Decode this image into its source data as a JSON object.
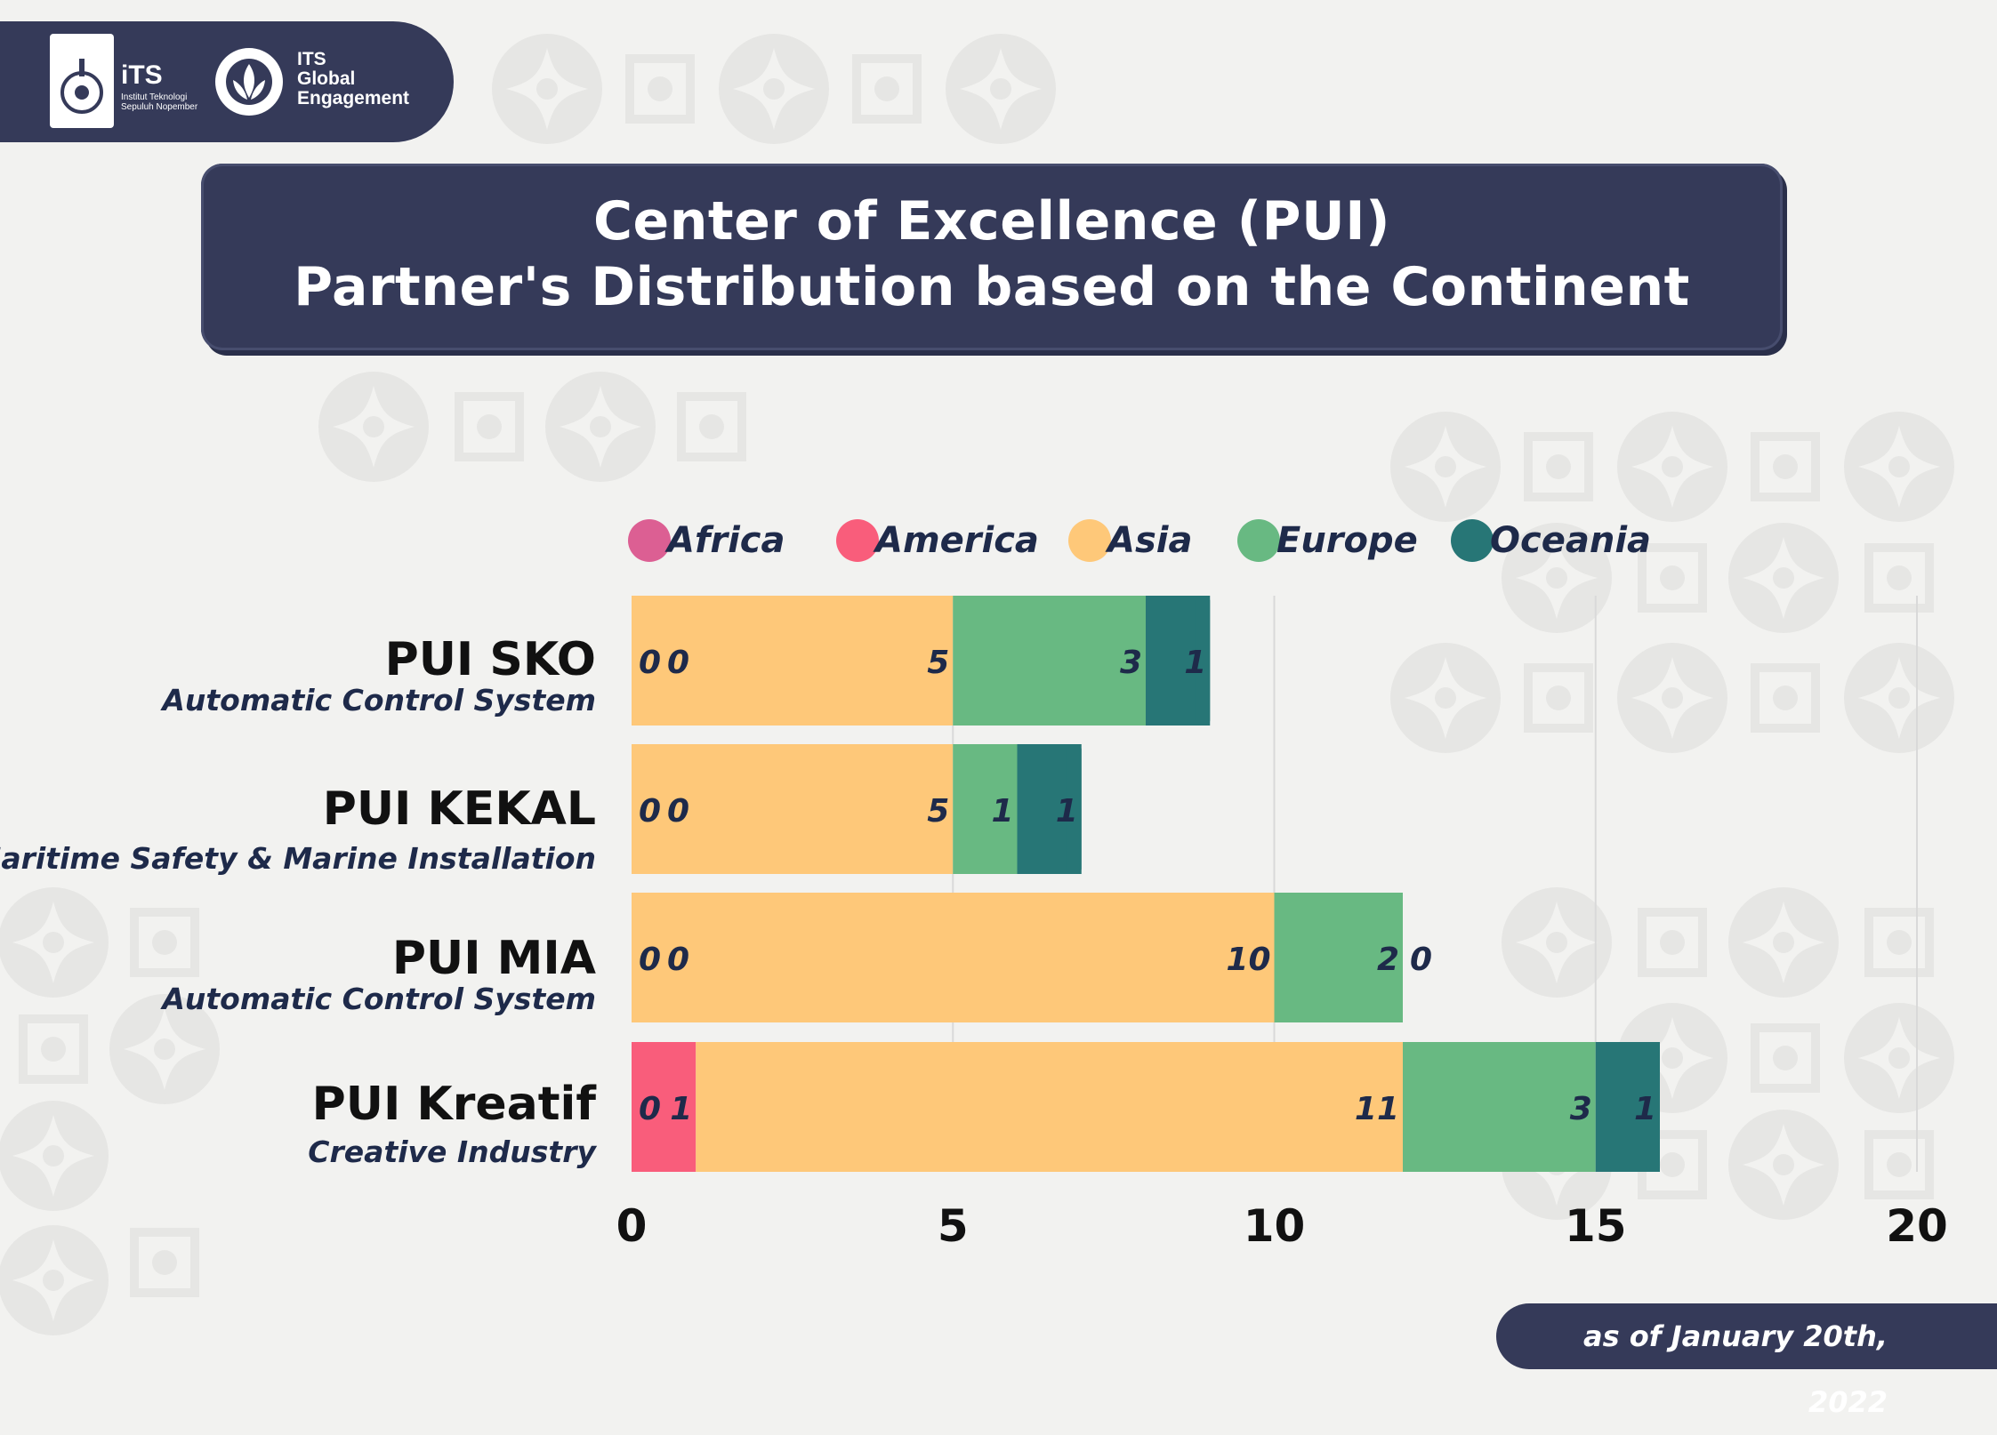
{
  "header": {
    "its_logo": {
      "word": "iTS",
      "subtitle": "Institut Teknologi Sepuluh Nopember"
    },
    "ge_logo": {
      "line1": "ITS",
      "line2": "Global",
      "line3": "Engagement"
    }
  },
  "title": {
    "line1": "Center of Excellence (PUI)",
    "line2": "Partner's Distribution based on the Continent"
  },
  "footer": {
    "date": "as of January 20th, 2022"
  },
  "colors": {
    "navy": "#353a59",
    "Africa": "#dc5f93",
    "America": "#f95d7b",
    "Asia": "#fec879",
    "Europe": "#68b982",
    "Oceania": "#277676"
  },
  "chart_data": {
    "type": "bar",
    "orientation": "horizontal",
    "stacked": true,
    "categories": [
      {
        "name": "PUI SKO",
        "subtitle": "Automatic Control System"
      },
      {
        "name": "PUI KEKAL",
        "subtitle": "Maritime Safety & Marine Installation"
      },
      {
        "name": "PUI MIA",
        "subtitle": "Automatic Control System"
      },
      {
        "name": "PUI Kreatif",
        "subtitle": "Creative Industry"
      }
    ],
    "series": [
      {
        "name": "Africa",
        "values": [
          0,
          0,
          0,
          0
        ]
      },
      {
        "name": "America",
        "values": [
          0,
          0,
          0,
          1
        ]
      },
      {
        "name": "Asia",
        "values": [
          5,
          5,
          10,
          11
        ]
      },
      {
        "name": "Europe",
        "values": [
          3,
          1,
          2,
          3
        ]
      },
      {
        "name": "Oceania",
        "values": [
          1,
          1,
          0,
          1
        ]
      }
    ],
    "xlim": [
      0,
      20
    ],
    "xticks": [
      0,
      5,
      10,
      15,
      20
    ],
    "grid": true,
    "legend_position": "top"
  }
}
